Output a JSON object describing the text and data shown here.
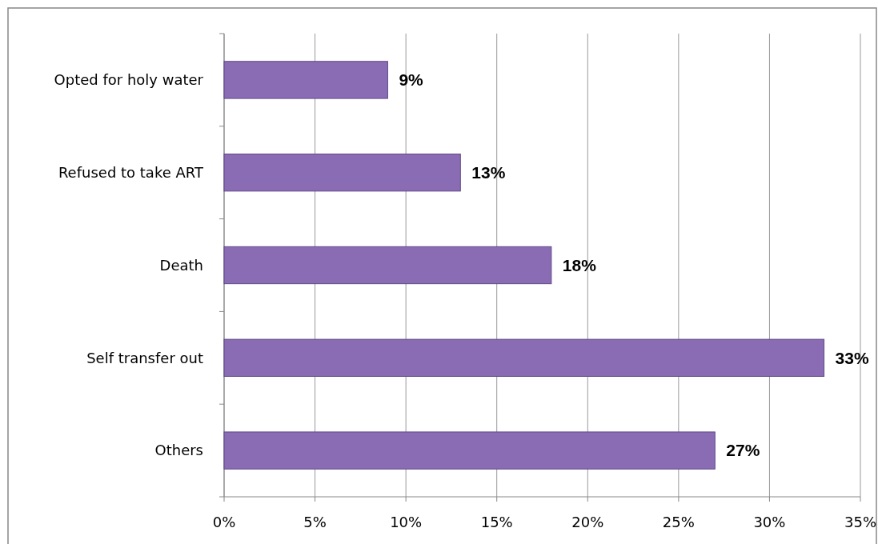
{
  "chart_data": {
    "type": "bar",
    "orientation": "horizontal",
    "categories": [
      "Opted for holy water",
      "Refused to take ART",
      "Death",
      "Self transfer out",
      "Others"
    ],
    "values": [
      9,
      13,
      18,
      33,
      27
    ],
    "color": "#8a6cb4",
    "value_labels": [
      "9%",
      "13%",
      "18%",
      "33%",
      "27%"
    ],
    "xlim": [
      0,
      35
    ],
    "xticks": [
      {
        "value": 0,
        "label": "0%"
      },
      {
        "value": 5,
        "label": "5%"
      },
      {
        "value": 10,
        "label": "10%"
      },
      {
        "value": 15,
        "label": "15%"
      },
      {
        "value": 20,
        "label": "20%"
      },
      {
        "value": 25,
        "label": "25%"
      },
      {
        "value": 30,
        "label": "30%"
      },
      {
        "value": 35,
        "label": "35%"
      }
    ],
    "grid": "x"
  }
}
